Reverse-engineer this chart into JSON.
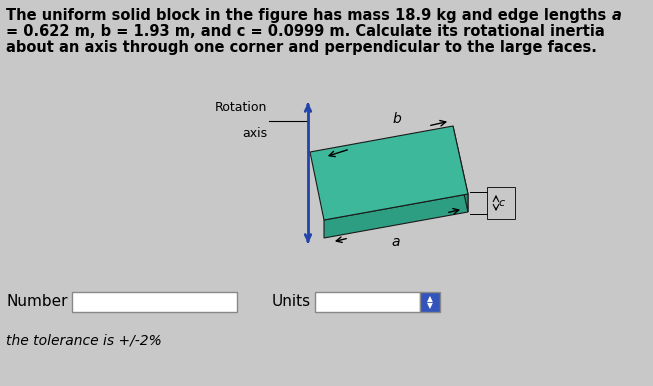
{
  "title_line1": "The uniform solid block in the figure has mass 18.9 kg and edge lengths ",
  "title_line1_bold_end": "a",
  "title_line2": "= 0.622 m, ",
  "title_line3": "about an axis through one corner and perpendicular to the large faces.",
  "title_fontsize": 10.5,
  "bg_color": "#c8c8c8",
  "block_color_top": "#3db89a",
  "block_color_front": "#2e9e82",
  "block_color_right": "#258c70",
  "axis_color": "#2244aa",
  "rotation_axis_label_line1": "Rotation",
  "rotation_axis_label_line2": "axis",
  "label_b": "b",
  "label_a": "a",
  "label_c": "c",
  "number_label": "Number",
  "units_label": "Units",
  "tolerance_text": "the tolerance is +/-2%",
  "spinner_color": "#3355bb"
}
